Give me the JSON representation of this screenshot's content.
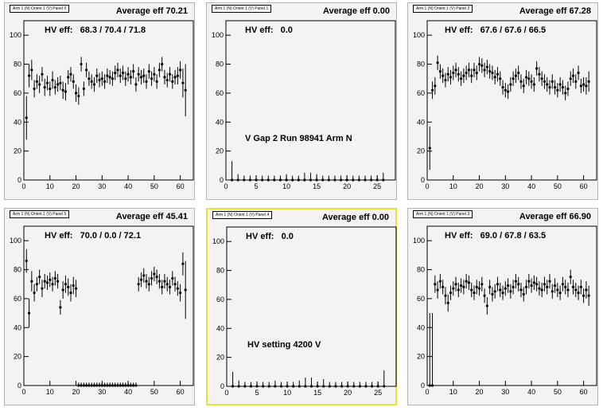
{
  "chart_data": [
    {
      "type": "scatter",
      "title": "Arm 1 (N) Orient 1 (V) Panel 0",
      "average_label": "Average eff 70.21",
      "hv_label": "HV eff:   68.3 / 70.4 / 71.8",
      "xlim": [
        0,
        65
      ],
      "ylim": [
        0,
        110
      ],
      "xticks": [
        0,
        10,
        20,
        30,
        40,
        50,
        60
      ],
      "yticks": [
        0,
        20,
        40,
        60,
        80,
        100
      ],
      "x": [
        1,
        2,
        3,
        4,
        5,
        6,
        7,
        8,
        9,
        10,
        11,
        12,
        13,
        14,
        15,
        16,
        17,
        18,
        19,
        20,
        21,
        22,
        23,
        24,
        25,
        26,
        27,
        28,
        29,
        30,
        31,
        32,
        33,
        34,
        35,
        36,
        37,
        38,
        39,
        40,
        41,
        42,
        43,
        44,
        45,
        46,
        47,
        48,
        49,
        50,
        51,
        52,
        53,
        54,
        55,
        56,
        57,
        58,
        59,
        60,
        61,
        62
      ],
      "y": [
        43,
        72,
        76,
        63,
        68,
        66,
        73,
        64,
        67,
        63,
        69,
        64,
        66,
        67,
        62,
        61,
        71,
        73,
        68,
        60,
        58,
        80,
        63,
        76,
        70,
        68,
        66,
        72,
        69,
        70,
        68,
        72,
        71,
        70,
        74,
        76,
        72,
        74,
        70,
        73,
        71,
        75,
        66,
        73,
        71,
        72,
        68,
        75,
        70,
        73,
        68,
        76,
        80,
        71,
        69,
        73,
        68,
        71,
        72,
        76,
        67,
        62
      ],
      "err": [
        15,
        8,
        7,
        6,
        5,
        6,
        5,
        6,
        5,
        5,
        6,
        5,
        5,
        5,
        6,
        6,
        5,
        5,
        5,
        6,
        6,
        5,
        5,
        5,
        5,
        5,
        5,
        5,
        5,
        5,
        5,
        5,
        5,
        5,
        5,
        5,
        5,
        5,
        5,
        5,
        5,
        5,
        5,
        5,
        5,
        5,
        5,
        5,
        5,
        5,
        5,
        5,
        5,
        5,
        5,
        5,
        5,
        5,
        6,
        6,
        10,
        18
      ]
    },
    {
      "type": "scatter",
      "title": "Arm 1 (N) Orient 1 (V) Panel 1",
      "average_label": "Average eff 0.00",
      "hv_label": "HV eff:   0.0",
      "note": "V Gap 2 Run 98941 Arm N",
      "xlim": [
        0,
        28
      ],
      "ylim": [
        0,
        110
      ],
      "xticks": [
        0,
        5,
        10,
        15,
        20,
        25
      ],
      "yticks": [
        0,
        20,
        40,
        60,
        80,
        100
      ],
      "x": [
        1,
        2,
        3,
        4,
        5,
        6,
        7,
        8,
        9,
        10,
        11,
        12,
        13,
        14,
        15,
        16,
        17,
        18,
        19,
        20,
        21,
        22,
        23,
        24,
        25,
        26
      ],
      "y": [
        0,
        0,
        0,
        0,
        0,
        0,
        0,
        0,
        0,
        0,
        0,
        0,
        0,
        0,
        0,
        0,
        0,
        0,
        0,
        0,
        0,
        0,
        0,
        0,
        0,
        0
      ],
      "err": [
        13,
        4,
        3,
        3,
        3,
        3,
        3,
        3,
        3,
        4,
        3,
        3,
        5,
        5,
        4,
        3,
        3,
        3,
        3,
        3,
        3,
        3,
        3,
        3,
        3,
        5
      ]
    },
    {
      "type": "scatter",
      "title": "Arm 1 (N) Orient 1 (V) Panel 2",
      "average_label": "Average eff 67.28",
      "hv_label": "HV eff:   67.6 / 67.6 / 66.5",
      "xlim": [
        0,
        65
      ],
      "ylim": [
        0,
        110
      ],
      "xticks": [
        0,
        10,
        20,
        30,
        40,
        50,
        60
      ],
      "yticks": [
        0,
        20,
        40,
        60,
        80,
        100
      ],
      "x": [
        1,
        2,
        3,
        4,
        5,
        6,
        7,
        8,
        9,
        10,
        11,
        12,
        13,
        14,
        15,
        16,
        17,
        18,
        19,
        20,
        21,
        22,
        23,
        24,
        25,
        26,
        27,
        28,
        29,
        30,
        31,
        32,
        33,
        34,
        35,
        36,
        37,
        38,
        39,
        40,
        41,
        42,
        43,
        44,
        45,
        46,
        47,
        48,
        49,
        50,
        51,
        52,
        53,
        54,
        55,
        56,
        57,
        58,
        59,
        60,
        61,
        62
      ],
      "y": [
        22,
        62,
        65,
        81,
        75,
        72,
        69,
        73,
        71,
        74,
        76,
        73,
        70,
        72,
        74,
        76,
        72,
        76,
        74,
        80,
        79,
        76,
        78,
        75,
        74,
        71,
        73,
        70,
        64,
        62,
        61,
        66,
        70,
        72,
        74,
        68,
        65,
        71,
        70,
        68,
        66,
        77,
        73,
        70,
        68,
        66,
        64,
        68,
        64,
        62,
        66,
        64,
        60,
        63,
        70,
        72,
        68,
        74,
        65,
        66,
        65,
        68
      ],
      "err": [
        15,
        6,
        6,
        5,
        5,
        5,
        5,
        5,
        5,
        5,
        5,
        5,
        5,
        5,
        5,
        5,
        5,
        5,
        5,
        5,
        5,
        5,
        5,
        5,
        5,
        5,
        5,
        5,
        5,
        5,
        5,
        5,
        5,
        5,
        5,
        5,
        5,
        5,
        5,
        5,
        5,
        5,
        5,
        5,
        5,
        5,
        5,
        5,
        5,
        5,
        5,
        5,
        5,
        5,
        5,
        5,
        5,
        5,
        5,
        5,
        6,
        7
      ]
    },
    {
      "type": "scatter",
      "title": "Arm 1 (N) Orient 1 (V) Panel 5",
      "average_label": "Average eff 45.41",
      "hv_label": "HV eff:   70.0 / 0.0 / 72.1",
      "xlim": [
        0,
        65
      ],
      "ylim": [
        0,
        110
      ],
      "xticks": [
        0,
        10,
        20,
        30,
        40,
        50,
        60
      ],
      "yticks": [
        0,
        20,
        40,
        60,
        80,
        100
      ],
      "x": [
        1,
        2,
        3,
        4,
        5,
        6,
        7,
        8,
        9,
        10,
        11,
        12,
        13,
        14,
        15,
        16,
        17,
        18,
        19,
        20,
        21,
        22,
        23,
        24,
        25,
        26,
        27,
        28,
        29,
        30,
        31,
        32,
        33,
        34,
        35,
        36,
        37,
        38,
        39,
        40,
        41,
        42,
        43,
        44,
        45,
        46,
        47,
        48,
        49,
        50,
        51,
        52,
        53,
        54,
        55,
        56,
        57,
        58,
        59,
        60,
        61,
        62
      ],
      "y": [
        86,
        50,
        72,
        64,
        70,
        75,
        67,
        72,
        71,
        73,
        70,
        74,
        72,
        54,
        66,
        70,
        68,
        64,
        69,
        67,
        0,
        0,
        0,
        0,
        0,
        0,
        0,
        0,
        0,
        0,
        0,
        0,
        0,
        0,
        0,
        0,
        0,
        0,
        0,
        0,
        0,
        0,
        0,
        70,
        73,
        76,
        72,
        70,
        74,
        77,
        75,
        72,
        68,
        72,
        70,
        68,
        74,
        70,
        67,
        64,
        84,
        66
      ],
      "err": [
        8,
        10,
        7,
        6,
        5,
        5,
        6,
        5,
        5,
        5,
        5,
        5,
        5,
        5,
        6,
        6,
        6,
        6,
        6,
        6,
        2,
        2,
        2,
        2,
        2,
        2,
        2,
        2,
        2,
        2,
        2,
        2,
        2,
        2,
        2,
        2,
        2,
        2,
        2,
        2,
        2,
        2,
        2,
        5,
        5,
        5,
        5,
        5,
        5,
        5,
        5,
        5,
        5,
        5,
        5,
        5,
        5,
        5,
        5,
        6,
        8,
        20
      ]
    },
    {
      "type": "scatter",
      "title": "Arm 1 (N) Orient 1 (V) Panel 4",
      "average_label": "Average eff 0.00",
      "hv_label": "HV eff:   0.0",
      "note": "HV setting 4200 V",
      "xlim": [
        0,
        28
      ],
      "ylim": [
        0,
        110
      ],
      "xticks": [
        0,
        5,
        10,
        15,
        20,
        25
      ],
      "yticks": [
        0,
        20,
        40,
        60,
        80,
        100
      ],
      "x": [
        1,
        2,
        3,
        4,
        5,
        6,
        7,
        8,
        9,
        10,
        11,
        12,
        13,
        14,
        15,
        16,
        17,
        18,
        19,
        20,
        21,
        22,
        23,
        24,
        25,
        26
      ],
      "y": [
        0,
        0,
        0,
        0,
        0,
        0,
        0,
        0,
        0,
        0,
        0,
        0,
        0,
        0,
        0,
        0,
        0,
        0,
        0,
        0,
        0,
        0,
        0,
        0,
        0,
        0
      ],
      "err": [
        10,
        4,
        3,
        3,
        3,
        3,
        3,
        4,
        3,
        3,
        3,
        4,
        6,
        6,
        3,
        5,
        3,
        3,
        3,
        3,
        3,
        3,
        3,
        3,
        3,
        11
      ]
    },
    {
      "type": "scatter",
      "title": "Arm 1 (N) Orient 1 (V) Panel 3",
      "average_label": "Average eff 66.90",
      "hv_label": "HV eff:   69.0 / 67.8 / 63.5",
      "xlim": [
        0,
        65
      ],
      "ylim": [
        0,
        110
      ],
      "xticks": [
        0,
        10,
        20,
        30,
        40,
        50,
        60
      ],
      "yticks": [
        0,
        20,
        40,
        60,
        80,
        100
      ],
      "x": [
        1,
        2,
        3,
        4,
        5,
        6,
        7,
        8,
        9,
        10,
        11,
        12,
        13,
        14,
        15,
        16,
        17,
        18,
        19,
        20,
        21,
        22,
        23,
        24,
        25,
        26,
        27,
        28,
        29,
        30,
        31,
        32,
        33,
        34,
        35,
        36,
        37,
        38,
        39,
        40,
        41,
        42,
        43,
        44,
        45,
        46,
        47,
        48,
        49,
        50,
        51,
        52,
        53,
        54,
        55,
        56,
        57,
        58,
        59,
        60,
        61,
        62
      ],
      "y": [
        0,
        0,
        70,
        66,
        72,
        68,
        62,
        57,
        64,
        67,
        70,
        66,
        69,
        68,
        72,
        71,
        66,
        64,
        68,
        67,
        70,
        62,
        55,
        68,
        63,
        65,
        70,
        66,
        64,
        67,
        69,
        65,
        68,
        72,
        70,
        66,
        63,
        68,
        72,
        69,
        71,
        70,
        67,
        66,
        70,
        68,
        72,
        65,
        69,
        66,
        64,
        70,
        68,
        66,
        75,
        68,
        66,
        64,
        68,
        62,
        66,
        62
      ],
      "err": [
        50,
        50,
        6,
        6,
        5,
        5,
        6,
        6,
        5,
        5,
        5,
        5,
        5,
        5,
        5,
        5,
        5,
        5,
        5,
        5,
        5,
        5,
        6,
        5,
        5,
        5,
        5,
        5,
        5,
        5,
        5,
        5,
        5,
        5,
        5,
        5,
        5,
        5,
        5,
        5,
        5,
        5,
        5,
        5,
        5,
        5,
        5,
        5,
        5,
        5,
        5,
        5,
        5,
        5,
        5,
        5,
        5,
        5,
        5,
        5,
        6,
        7
      ]
    }
  ]
}
